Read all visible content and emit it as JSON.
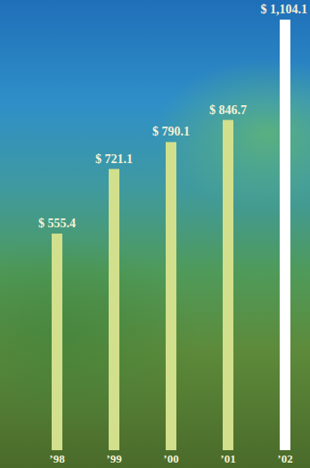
{
  "chart_data": {
    "type": "bar",
    "categories": [
      "’98",
      "’99",
      "’00",
      "’01",
      "’02"
    ],
    "values": [
      555.4,
      721.1,
      790.1,
      846.7,
      1104.1
    ],
    "value_labels": [
      "$ 555.4",
      "$ 721.1",
      "$ 790.1",
      "$ 846.7",
      "$ 1,104.1"
    ],
    "colors": [
      "#d2df8c",
      "#d2df8c",
      "#d2df8c",
      "#d2df8c",
      "#ffffff"
    ],
    "ylim": [
      0,
      1104.1
    ],
    "data_labels": true,
    "tick_labels": "x",
    "grid": false
  }
}
